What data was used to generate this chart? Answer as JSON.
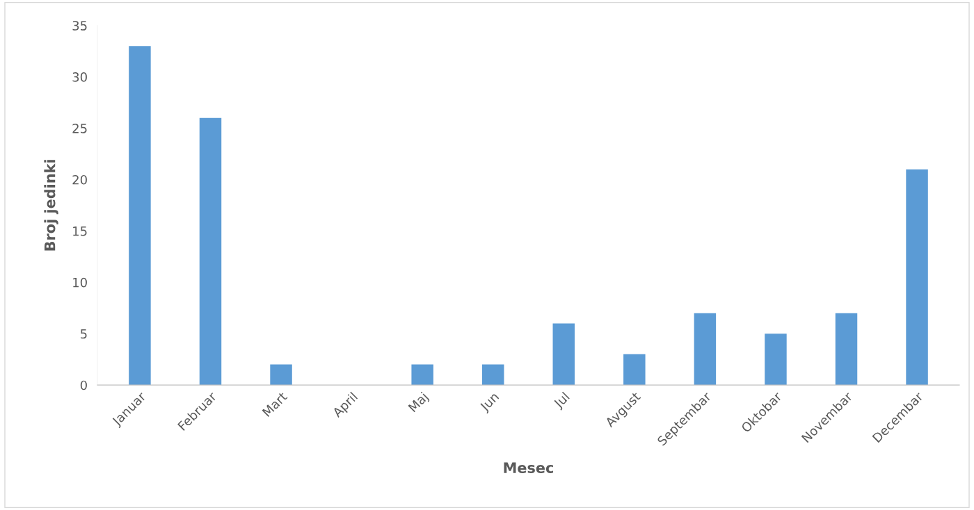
{
  "chart_data": {
    "type": "bar",
    "xlabel": "Mesec",
    "ylabel": "Broj jedinki",
    "categories": [
      "Januar",
      "Februar",
      "Mart",
      "April",
      "Maj",
      "Jun",
      "Jul",
      "Avgust",
      "Septembar",
      "Oktobar",
      "Novembar",
      "Decembar"
    ],
    "values": [
      33,
      26,
      2,
      0,
      2,
      2,
      6,
      3,
      7,
      5,
      7,
      21
    ],
    "color": "#5b9bd5",
    "ylim": [
      0,
      35
    ],
    "yticks": [
      0,
      5,
      10,
      15,
      20,
      25,
      30,
      35
    ],
    "grid": false,
    "legend": false
  }
}
